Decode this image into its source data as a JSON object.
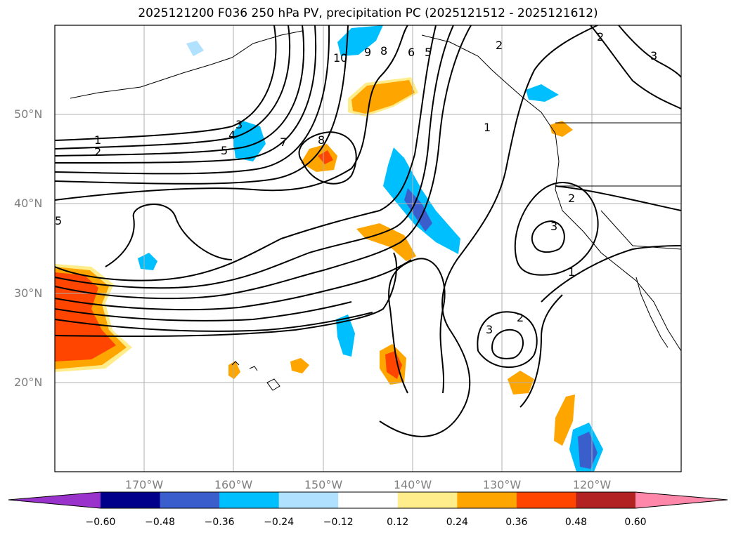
{
  "title": "2025121200 F036 250 hPa PV, precipitation PC (2025121512 - 2025121612)",
  "map": {
    "lat_labels": [
      "50°N",
      "40°N",
      "30°N",
      "20°N"
    ],
    "lon_labels": [
      "170°W",
      "160°W",
      "150°W",
      "140°W",
      "130°W",
      "120°W"
    ],
    "contour_labels": [
      {
        "text": "10"
      },
      {
        "text": "9"
      },
      {
        "text": "8"
      },
      {
        "text": "6"
      },
      {
        "text": "5"
      },
      {
        "text": "2"
      },
      {
        "text": "2"
      },
      {
        "text": "3"
      },
      {
        "text": "1"
      },
      {
        "text": "1"
      },
      {
        "text": "2"
      },
      {
        "text": "3"
      },
      {
        "text": "4"
      },
      {
        "text": "5"
      },
      {
        "text": "7"
      },
      {
        "text": "8"
      },
      {
        "text": "5"
      },
      {
        "text": "2"
      },
      {
        "text": "3"
      },
      {
        "text": "1"
      },
      {
        "text": "3"
      },
      {
        "text": "2"
      }
    ]
  },
  "colorbar": {
    "ticks": [
      "−0.60",
      "−0.48",
      "−0.36",
      "−0.24",
      "−0.12",
      "0.12",
      "0.24",
      "0.36",
      "0.48",
      "0.60"
    ],
    "colors": [
      "#9933cc",
      "#00008b",
      "#3a5fcd",
      "#00bfff",
      "#b0e2ff",
      "#ffffff",
      "#ffec8b",
      "#ffa500",
      "#ff4500",
      "#b22222",
      "#ff88aa"
    ]
  }
}
